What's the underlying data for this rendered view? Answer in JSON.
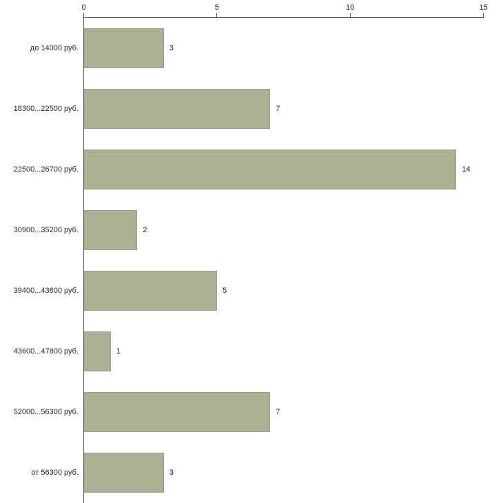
{
  "chart_data": {
    "type": "bar",
    "orientation": "horizontal",
    "title": "",
    "xlabel": "",
    "ylabel": "",
    "categories": [
      "до 14000 руб.",
      "18300...22500 руб.",
      "22500...26700 руб.",
      "30900...35200 руб.",
      "39400...43600 руб.",
      "43600...47800 руб.",
      "52000...56300 руб.",
      "от 56300 руб."
    ],
    "values": [
      3,
      7,
      14,
      2,
      5,
      1,
      7,
      3
    ],
    "xlim": [
      0,
      15
    ],
    "xticks": [
      0,
      5,
      10,
      15
    ],
    "grid": false,
    "legend": false,
    "axis_position": "top",
    "bar_color": "#abb294",
    "axis_color": "#595959",
    "text_color": "#1a1a1a",
    "background_color": "#ffffff"
  }
}
